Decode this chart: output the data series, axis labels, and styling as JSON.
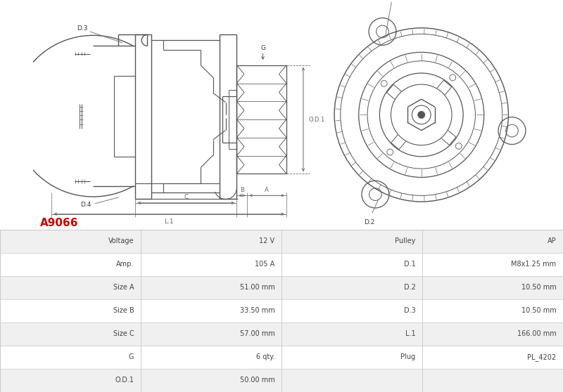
{
  "title": "A9066",
  "title_color": "#cc0000",
  "background_color": "#ffffff",
  "table_rows": [
    [
      "Voltage",
      "12 V",
      "Pulley",
      "AP"
    ],
    [
      "Amp.",
      "105 A",
      "D.1",
      "M8x1.25 mm"
    ],
    [
      "Size A",
      "51.00 mm",
      "D.2",
      "10.50 mm"
    ],
    [
      "Size B",
      "33.50 mm",
      "D.3",
      "10.50 mm"
    ],
    [
      "Size C",
      "57.00 mm",
      "L.1",
      "166.00 mm"
    ],
    [
      "G",
      "6 qty.",
      "Plug",
      "PL_4202"
    ],
    [
      "O.D.1",
      "50.00 mm",
      "",
      ""
    ]
  ],
  "line_color": "#555555",
  "dim_color": "#666666",
  "fig_width": 8.0,
  "fig_height": 5.58
}
